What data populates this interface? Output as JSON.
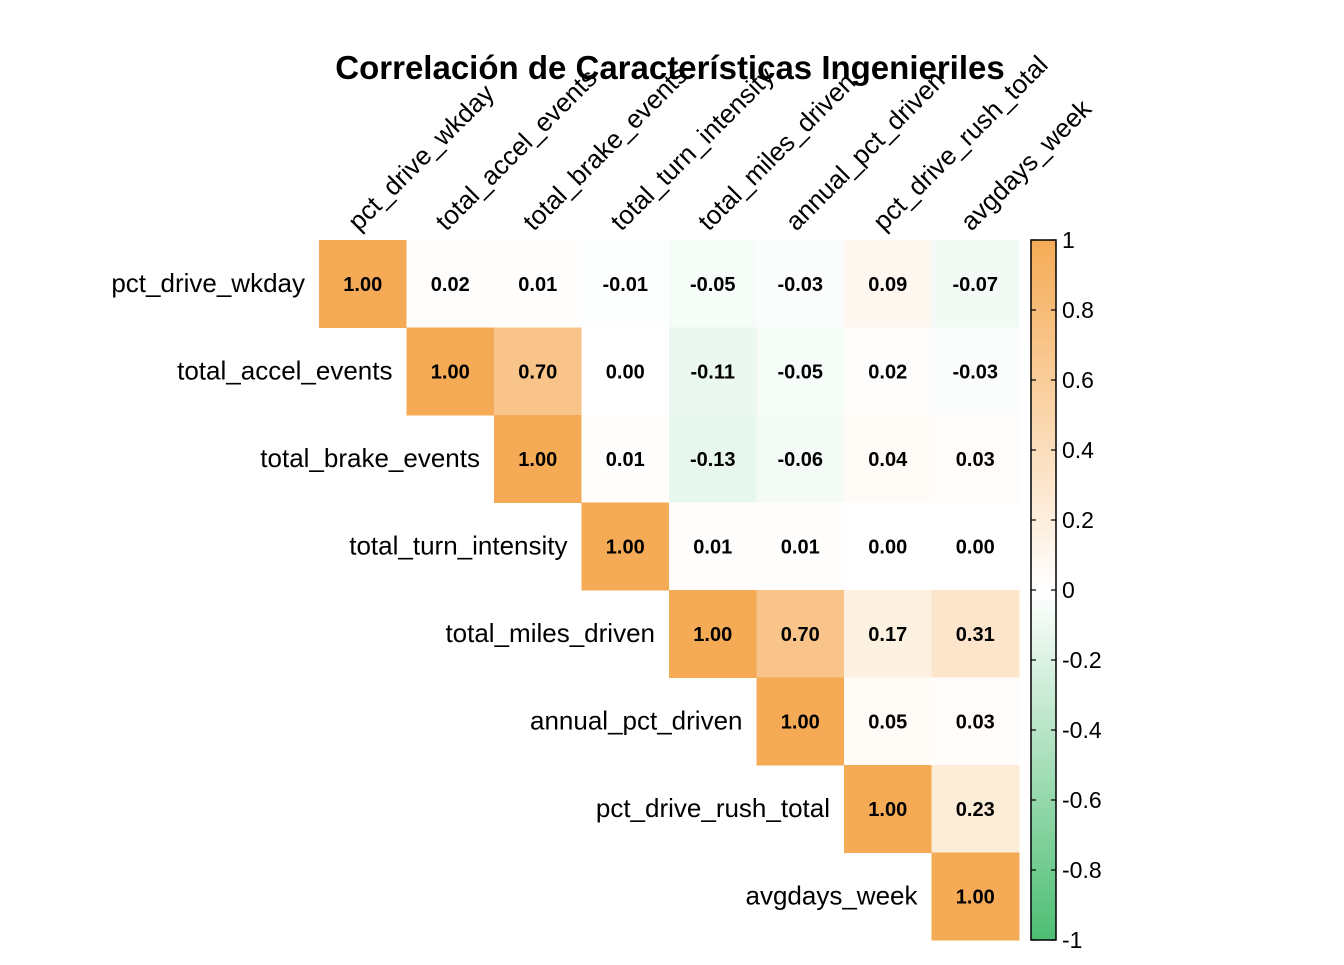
{
  "chart_data": {
    "type": "heatmap",
    "title": "Correlación de Características Ingenieriles",
    "variables": [
      "pct_drive_wkday",
      "total_accel_events",
      "total_brake_events",
      "total_turn_intensity",
      "total_miles_driven",
      "annual_pct_driven",
      "pct_drive_rush_total",
      "avgdays_week"
    ],
    "matrix_shape": "upper-triangle",
    "matrix": [
      [
        1.0,
        0.02,
        0.01,
        -0.01,
        -0.05,
        -0.03,
        0.09,
        -0.07
      ],
      [
        null,
        1.0,
        0.7,
        0.0,
        -0.11,
        -0.05,
        0.02,
        -0.03
      ],
      [
        null,
        null,
        1.0,
        0.01,
        -0.13,
        -0.06,
        0.04,
        0.03
      ],
      [
        null,
        null,
        null,
        1.0,
        0.01,
        0.01,
        0.0,
        0.0
      ],
      [
        null,
        null,
        null,
        null,
        1.0,
        0.7,
        0.17,
        0.31
      ],
      [
        null,
        null,
        null,
        null,
        null,
        1.0,
        0.05,
        0.03
      ],
      [
        null,
        null,
        null,
        null,
        null,
        null,
        1.0,
        0.23
      ],
      [
        null,
        null,
        null,
        null,
        null,
        null,
        null,
        1.0
      ]
    ],
    "value_format_decimals": 2,
    "color_scale": {
      "min": -1,
      "max": 1,
      "low_color": "#4DBE73",
      "mid_color": "#FFFFFF",
      "high_color": "#F5AB56"
    },
    "colorbar": {
      "position": "right",
      "ticks": [
        1,
        0.8,
        0.6,
        0.4,
        0.2,
        0,
        -0.2,
        -0.4,
        -0.6,
        -0.8,
        -1
      ],
      "tick_labels": [
        "1",
        "0.8",
        "0.6",
        "0.4",
        "0.2",
        "0",
        "-0.2",
        "-0.4",
        "-0.6",
        "-0.8",
        "-1"
      ]
    },
    "grid": false
  }
}
